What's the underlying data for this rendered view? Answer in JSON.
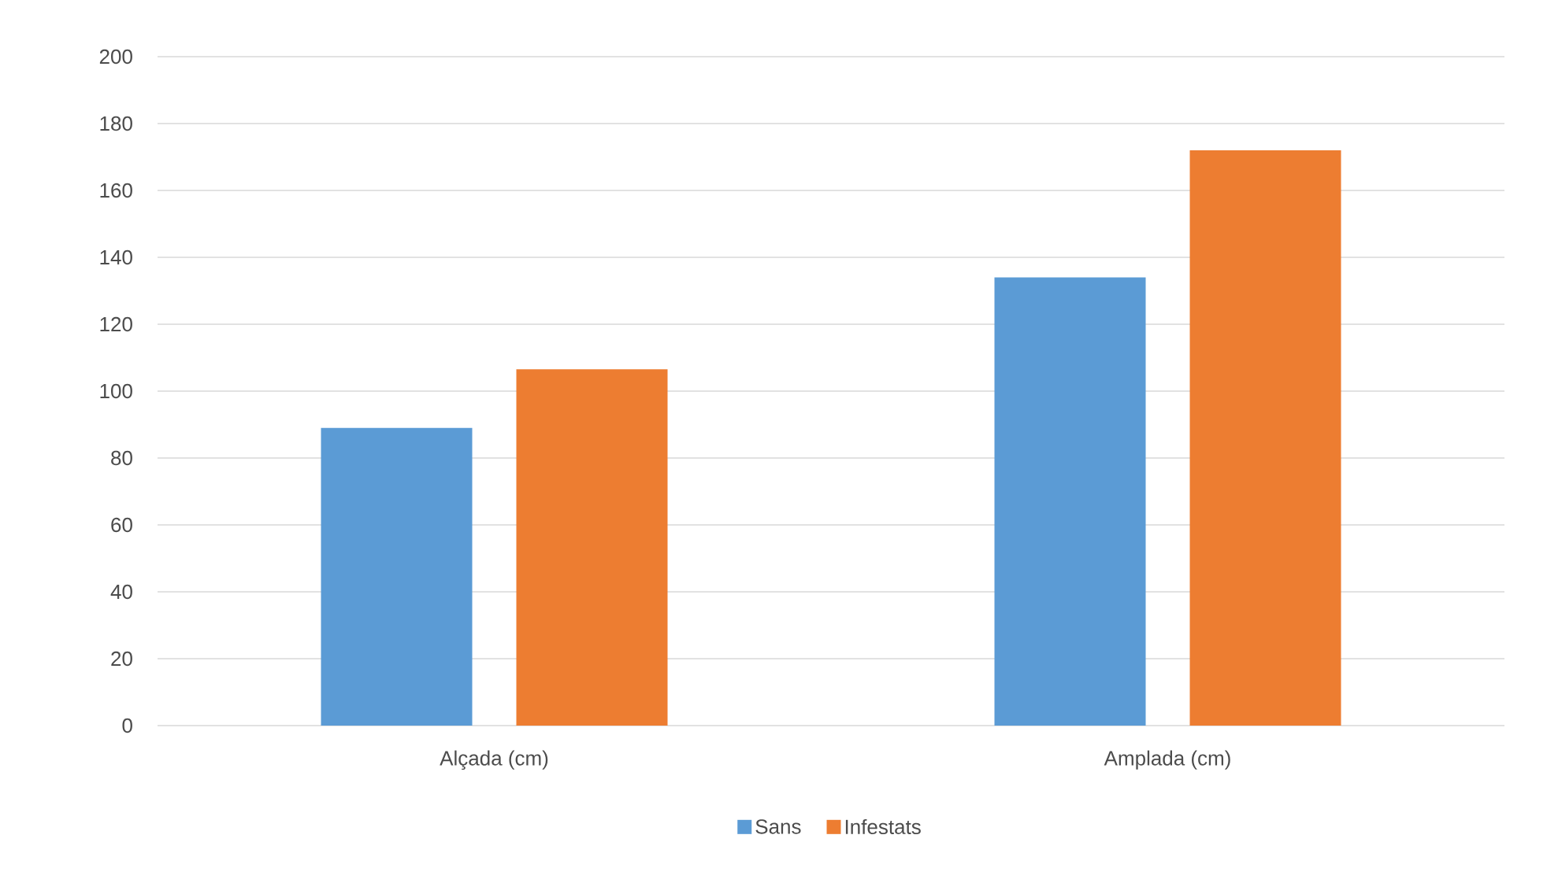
{
  "chart_data": {
    "type": "bar",
    "categories": [
      "Alçada (cm)",
      "Amplada (cm)"
    ],
    "series": [
      {
        "name": "Sans",
        "color": "#5b9bd5",
        "values": [
          89,
          134
        ]
      },
      {
        "name": "Infestats",
        "color": "#ed7d31",
        "values": [
          106.5,
          172
        ]
      }
    ],
    "ylim": [
      0,
      200
    ],
    "yticks": [
      0,
      20,
      40,
      60,
      80,
      100,
      120,
      140,
      160,
      180,
      200
    ],
    "grid": "y",
    "legend": "bottom"
  }
}
